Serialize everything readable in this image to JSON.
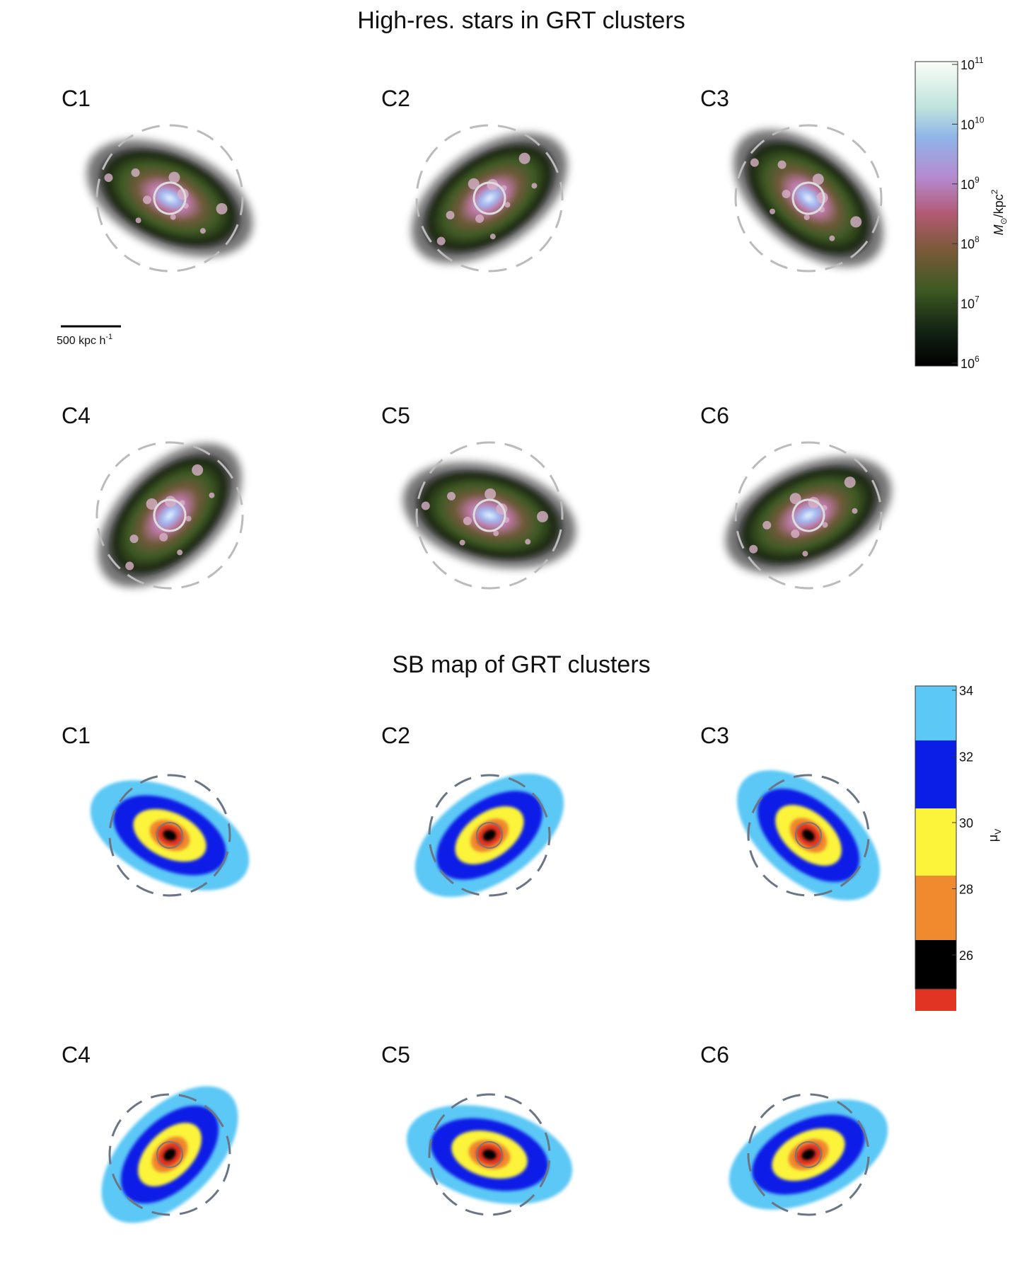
{
  "top": {
    "title": "High-res. stars in GRT clusters",
    "panels": [
      "C1",
      "C2",
      "C3",
      "C4",
      "C5",
      "C6"
    ],
    "scale_bar": {
      "text": "500 kpc h",
      "exponent": "-1"
    },
    "colorbar": {
      "label": {
        "text": "M",
        "sub": "⊙",
        "rest": "/kpc",
        "sup": "2"
      },
      "ticks": [
        {
          "base": "10",
          "exponent": "11"
        },
        {
          "base": "10",
          "exponent": "10"
        },
        {
          "base": "10",
          "exponent": "9"
        },
        {
          "base": "10",
          "exponent": "8"
        },
        {
          "base": "10",
          "exponent": "7"
        },
        {
          "base": "10",
          "exponent": "6"
        }
      ]
    }
  },
  "bottom": {
    "title": "SB map of GRT clusters",
    "panels": [
      "C1",
      "C2",
      "C3",
      "C4",
      "C5",
      "C6"
    ],
    "colorbar": {
      "label": {
        "text": "μ",
        "sub": "V"
      },
      "ticks": [
        "34",
        "32",
        "30",
        "28",
        "26"
      ]
    }
  }
}
